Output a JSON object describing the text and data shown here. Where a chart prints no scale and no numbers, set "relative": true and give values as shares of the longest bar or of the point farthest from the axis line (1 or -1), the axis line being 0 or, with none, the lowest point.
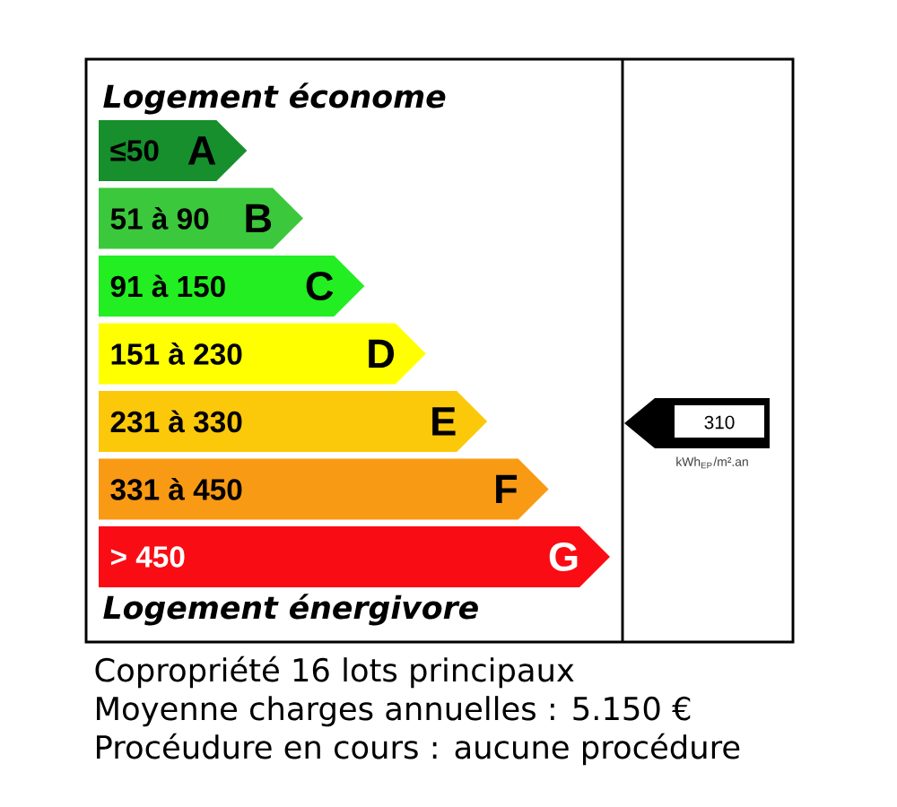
{
  "chart_data": {
    "type": "bar",
    "orientation": "horizontal",
    "relative": true,
    "title": "Logement économe",
    "categories": [
      "≤50",
      "51 à 90",
      "91 à 150",
      "151 à 230",
      "231 à 330",
      "331 à 450",
      "> 450"
    ],
    "values": [
      0.29,
      0.4,
      0.52,
      0.64,
      0.76,
      0.88,
      1
    ],
    "colors": [
      "#168f2c",
      "#3cc83c",
      "#22ee22",
      "#ffff00",
      "#fcc80a",
      "#f99a14",
      "#fa0c14"
    ],
    "annotations": [
      "A",
      "B",
      "C",
      "D",
      "E",
      "F",
      "G",
      "Logement énergivore",
      "310",
      "kWh$_{EP}$/m².an",
      "Copropriété 16 lots principaux",
      "Moyenne charges annuelles : 5.150 €",
      "Procéudure en cours : aucune procédure"
    ]
  }
}
